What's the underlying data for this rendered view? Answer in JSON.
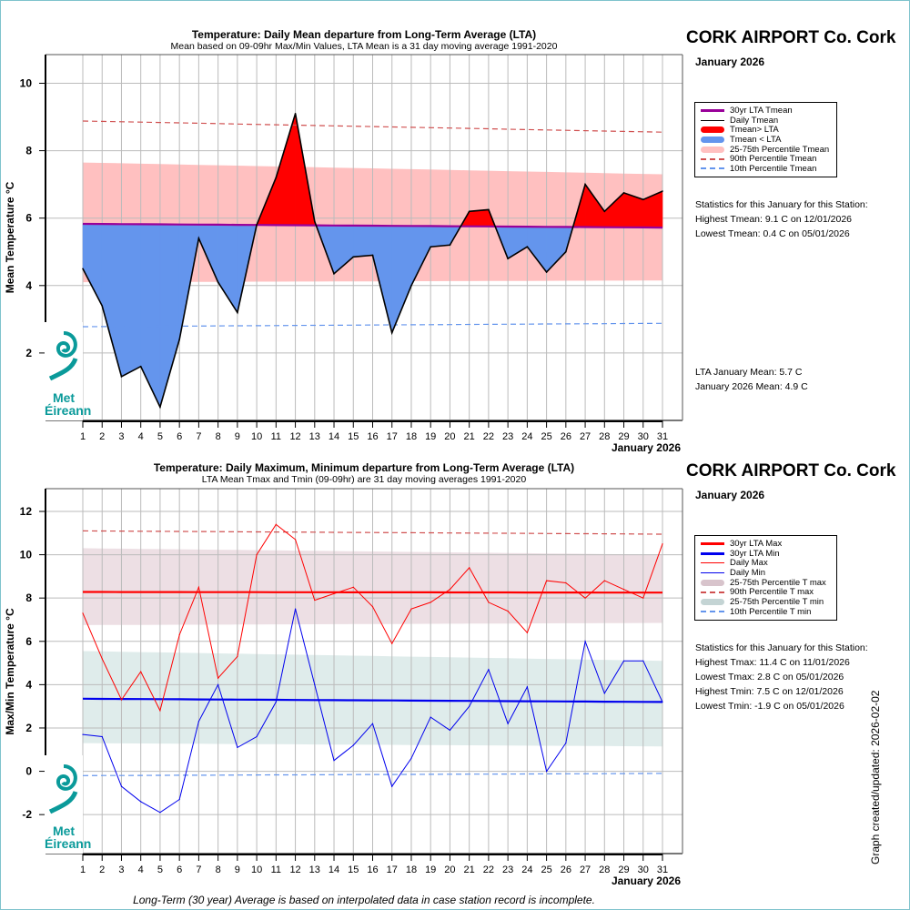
{
  "footnote": "Long-Term (30 year) Average is based on interpolated data in case station record is incomplete.",
  "stamp": "Graph created/updated:  2026-02-02",
  "logo": {
    "line1": "Met",
    "line2": "Éireann"
  },
  "panels": [
    {
      "station": "CORK AIRPORT Co. Cork",
      "month": "January 2026",
      "legend": [
        {
          "label": "30yr LTA Tmean",
          "style": "line-thick",
          "color": "#990099"
        },
        {
          "label": "Daily Tmean",
          "style": "line",
          "color": "#000000"
        },
        {
          "label": "Tmean> LTA",
          "style": "bar",
          "color": "#ff0000"
        },
        {
          "label": "Tmean < LTA",
          "style": "bar",
          "color": "#6495ed"
        },
        {
          "label": "25-75th Percentile Tmean",
          "style": "bar",
          "color": "#ffc0c0"
        },
        {
          "label": "90th Percentile Tmean",
          "style": "dash",
          "color": "#d05050"
        },
        {
          "label": "10th Percentile Tmean",
          "style": "dash",
          "color": "#6495ed"
        }
      ],
      "stats_heading": "Statistics for this January for this Station:",
      "stats": [
        "Highest Tmean: 9.1 C on 12/01/2026",
        "Lowest Tmean: 0.4 C on 05/01/2026"
      ],
      "summary": [
        "LTA January Mean: 5.7 C",
        "January 2026 Mean: 4.9 C"
      ]
    },
    {
      "station": "CORK AIRPORT Co. Cork",
      "month": "January 2026",
      "legend": [
        {
          "label": "30yr LTA Max",
          "style": "line-thick",
          "color": "#ff0000"
        },
        {
          "label": "30yr LTA Min",
          "style": "line-thick",
          "color": "#0000ee"
        },
        {
          "label": "Daily Max",
          "style": "line",
          "color": "#ff0000"
        },
        {
          "label": "Daily Min",
          "style": "line",
          "color": "#0000ee"
        },
        {
          "label": "25-75th Percentile T max",
          "style": "bar",
          "color": "#d8c4cc"
        },
        {
          "label": "90th Percentile T max",
          "style": "dash",
          "color": "#d05050"
        },
        {
          "label": "25-75th Percentile T min",
          "style": "bar",
          "color": "#c4d4d4"
        },
        {
          "label": "10th Percentile T min",
          "style": "dash",
          "color": "#6495ed"
        }
      ],
      "stats_heading": "Statistics for this January for this Station:",
      "stats": [
        "Highest Tmax: 11.4 C on 11/01/2026",
        "Lowest Tmax: 2.8 C on 05/01/2026",
        "Highest Tmin: 7.5 C on 12/01/2026",
        "Lowest Tmin: -1.9 C on 05/01/2026"
      ],
      "summary": []
    }
  ],
  "chart_data": [
    {
      "type": "area",
      "title": "Temperature: Daily Mean departure from Long-Term Average (LTA)",
      "subtitle": "Mean based on 09-09hr Max/Min Values, LTA Mean is a 31 day moving average 1991-2020",
      "xlabel": "January 2026",
      "ylabel": "Mean Temperature °C",
      "x": [
        1,
        2,
        3,
        4,
        5,
        6,
        7,
        8,
        9,
        10,
        11,
        12,
        13,
        14,
        15,
        16,
        17,
        18,
        19,
        20,
        21,
        22,
        23,
        24,
        25,
        26,
        27,
        28,
        29,
        30,
        31
      ],
      "ylim": [
        0,
        10.85
      ],
      "yticks": [
        2,
        4,
        6,
        8,
        10
      ],
      "grid": true,
      "legend": "right",
      "series": [
        {
          "name": "Daily Tmean",
          "values": [
            4.5,
            3.4,
            1.3,
            1.6,
            0.4,
            2.4,
            5.4,
            4.1,
            3.2,
            5.8,
            7.2,
            9.1,
            5.9,
            4.35,
            4.85,
            4.9,
            2.6,
            4.0,
            5.15,
            5.2,
            6.2,
            6.25,
            4.8,
            5.15,
            4.4,
            5.0,
            7.0,
            6.2,
            6.75,
            6.55,
            6.8
          ]
        },
        {
          "name": "30yr LTA Tmean",
          "start": 5.83,
          "end": 5.72
        },
        {
          "name": "25th Percentile Tmean",
          "start": 4.1,
          "end": 4.15
        },
        {
          "name": "75th Percentile Tmean",
          "start": 7.65,
          "end": 7.3
        },
        {
          "name": "90th Percentile Tmean",
          "start": 8.88,
          "end": 8.55
        },
        {
          "name": "10th Percentile Tmean",
          "start": 2.78,
          "end": 2.88
        }
      ]
    },
    {
      "type": "line",
      "title": "Temperature: Daily Maximum, Minimum departure from Long-Term Average (LTA)",
      "subtitle": "LTA Mean Tmax and Tmin (09-09hr) are 31 day moving averages 1991-2020",
      "xlabel": "January 2026",
      "ylabel": "Max/Min Temperature °C",
      "x": [
        1,
        2,
        3,
        4,
        5,
        6,
        7,
        8,
        9,
        10,
        11,
        12,
        13,
        14,
        15,
        16,
        17,
        18,
        19,
        20,
        21,
        22,
        23,
        24,
        25,
        26,
        27,
        28,
        29,
        30,
        31
      ],
      "ylim": [
        -3.8,
        13.05
      ],
      "yticks": [
        -2,
        0,
        2,
        4,
        6,
        8,
        10,
        12
      ],
      "grid": true,
      "legend": "right",
      "series": [
        {
          "name": "Daily Max",
          "values": [
            7.3,
            5.2,
            3.3,
            4.6,
            2.8,
            6.3,
            8.5,
            4.3,
            5.3,
            10.0,
            11.4,
            10.7,
            7.9,
            8.2,
            8.5,
            7.6,
            5.9,
            7.5,
            7.8,
            8.4,
            9.4,
            7.8,
            7.4,
            6.4,
            8.8,
            8.7,
            8.0,
            8.8,
            8.4,
            8.0,
            10.5
          ]
        },
        {
          "name": "Daily Min",
          "values": [
            1.7,
            1.6,
            -0.7,
            -1.4,
            -1.9,
            -1.3,
            2.3,
            4.0,
            1.1,
            1.6,
            3.2,
            7.5,
            4.0,
            0.5,
            1.2,
            2.2,
            -0.7,
            0.6,
            2.5,
            1.9,
            3.0,
            4.7,
            2.2,
            3.9,
            0.0,
            1.3,
            6.0,
            3.6,
            5.1,
            5.1,
            3.2
          ]
        },
        {
          "name": "30yr LTA Max",
          "start": 8.28,
          "end": 8.25
        },
        {
          "name": "30yr LTA Min",
          "start": 3.35,
          "end": 3.2
        },
        {
          "name": "25th Percentile T max",
          "start": 6.75,
          "end": 6.85
        },
        {
          "name": "75th Percentile T max",
          "start": 10.3,
          "end": 10.0
        },
        {
          "name": "90th Percentile T max",
          "start": 11.1,
          "end": 10.95
        },
        {
          "name": "25th Percentile T min",
          "start": 1.3,
          "end": 1.15
        },
        {
          "name": "75th Percentile T min",
          "start": 5.55,
          "end": 5.1
        },
        {
          "name": "10th Percentile T min",
          "start": -0.2,
          "end": -0.1
        }
      ]
    }
  ]
}
